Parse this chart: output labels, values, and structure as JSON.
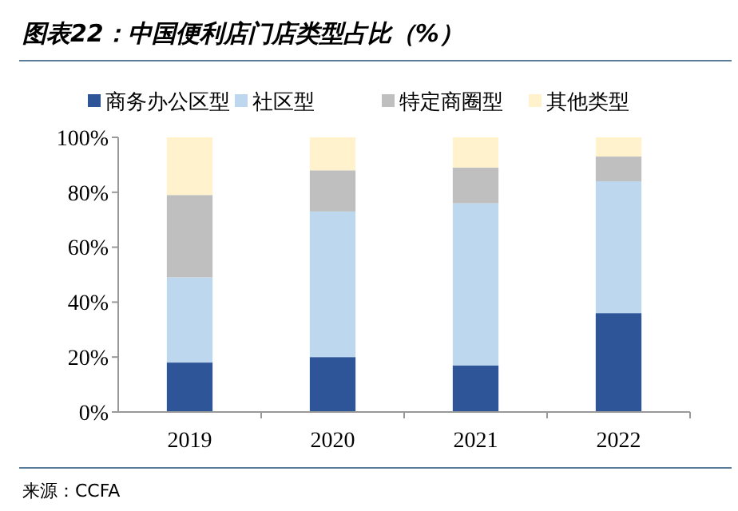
{
  "chart_data": {
    "type": "bar",
    "title": "图表22：中国便利店门店类型占比（%）",
    "stacked": true,
    "categories": [
      "2019",
      "2020",
      "2021",
      "2022"
    ],
    "series": [
      {
        "name": "商务办公区型",
        "color": "#2e5597",
        "values": [
          18,
          20,
          17,
          36
        ]
      },
      {
        "name": "社区型",
        "color": "#bdd7ee",
        "values": [
          31,
          53,
          59,
          48
        ]
      },
      {
        "name": "特定商圈型",
        "color": "#bfbfbf",
        "values": [
          30,
          15,
          13,
          9
        ]
      },
      {
        "name": "其他类型",
        "color": "#fff2cc",
        "values": [
          21,
          12,
          11,
          7
        ]
      }
    ],
    "ylim": [
      0,
      100
    ],
    "yticks": [
      {
        "value": 0,
        "label": "0%"
      },
      {
        "value": 20,
        "label": "20%"
      },
      {
        "value": 40,
        "label": "40%"
      },
      {
        "value": 60,
        "label": "60%"
      },
      {
        "value": 80,
        "label": "80%"
      },
      {
        "value": 100,
        "label": "100%"
      }
    ],
    "legend": "top",
    "annotations": [
      "来源：CCFA"
    ]
  }
}
